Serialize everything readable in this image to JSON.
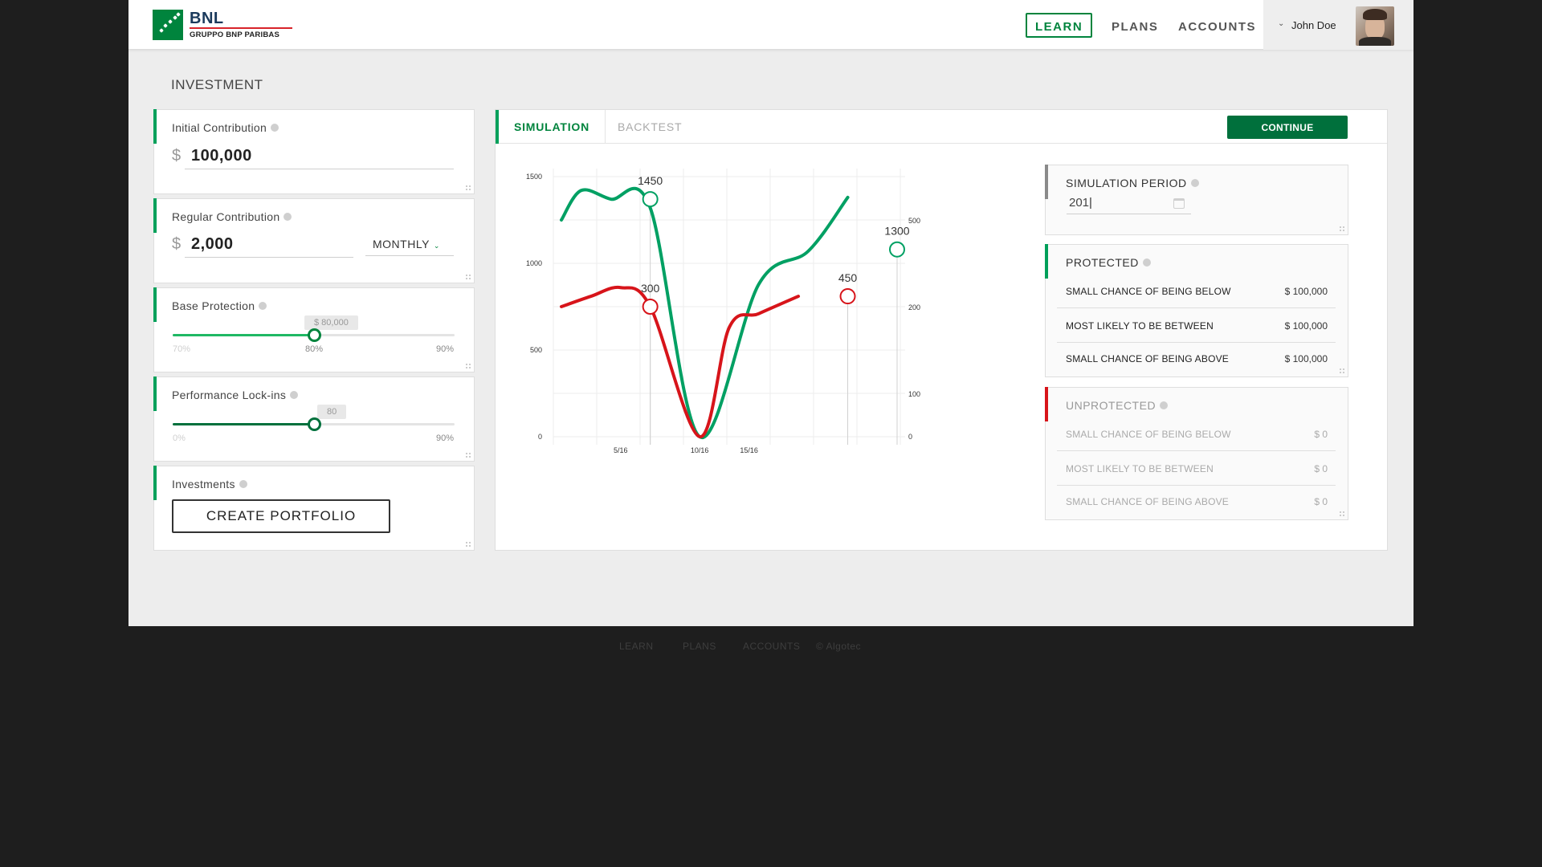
{
  "brand": {
    "name": "BNL",
    "subtitle": "GRUPPO BNP PARIBAS",
    "primary": "#00843d",
    "accent_red": "#d8232a"
  },
  "nav": {
    "learn": "LEARN",
    "plans": "PLANS",
    "accounts": "ACCOUNTS",
    "active": "LEARN"
  },
  "user": {
    "name": "John Doe"
  },
  "page": {
    "title": "INVESTMENT"
  },
  "left": {
    "initial": {
      "title": "Initial Contribution",
      "currency": "$",
      "value": "100,000"
    },
    "regular": {
      "title": "Regular Contribution",
      "currency": "$",
      "value": "2,000",
      "frequency": "MONTHLY"
    },
    "protection": {
      "title": "Base Protection",
      "bubble": "$ 80,000",
      "min": "70%",
      "current": "80%",
      "max": "90%",
      "position": 0.5
    },
    "lockins": {
      "title": "Performance Lock-ins",
      "bubble": "80",
      "min": "0%",
      "max": "90%",
      "position": 0.5
    },
    "investments": {
      "title": "Investments",
      "button": "CREATE PORTFOLIO"
    }
  },
  "tabs": {
    "simulation": "SIMULATION",
    "backtest": "BACKTEST",
    "active": "SIMULATION",
    "continue": "CONTINUE"
  },
  "chart_data": {
    "type": "line",
    "x_ticks": [
      "5/16",
      "10/16",
      "15/16"
    ],
    "left_axis": {
      "ticks": [
        "1500",
        "1000",
        "500",
        "0"
      ],
      "range": [
        0,
        1500
      ]
    },
    "right_axis": {
      "ticks": [
        "500",
        "200",
        "100",
        "0"
      ]
    },
    "grid": true,
    "series": [
      {
        "color": "#00a063",
        "values": [
          [
            1,
            1250
          ],
          [
            3,
            1420
          ],
          [
            6,
            1370
          ],
          [
            10,
            1320
          ],
          [
            15,
            0
          ],
          [
            21,
            880
          ],
          [
            26,
            1070
          ],
          [
            30,
            1380
          ]
        ]
      },
      {
        "color": "#d7141a",
        "values": [
          [
            1,
            750
          ],
          [
            4,
            810
          ],
          [
            7,
            860
          ],
          [
            10,
            750
          ],
          [
            15,
            0
          ],
          [
            18,
            630
          ],
          [
            21,
            710
          ],
          [
            25,
            810
          ]
        ]
      }
    ],
    "markers": [
      {
        "label": "1450",
        "x": 10,
        "y": 1370,
        "color": "#00a063"
      },
      {
        "label": "300",
        "x": 10,
        "y": 750,
        "color": "#d7141a"
      },
      {
        "label": "450",
        "x": 30,
        "y": 810,
        "color": "#d7141a"
      },
      {
        "label": "1300",
        "x": 35,
        "y": 1080,
        "color": "#00a063"
      }
    ]
  },
  "simulation_period": {
    "title": "SIMULATION PERIOD",
    "value": "201"
  },
  "protected": {
    "title": "PROTECTED",
    "rows": [
      {
        "label": "SMALL CHANCE OF BEING BELOW",
        "value": "$ 100,000"
      },
      {
        "label": "MOST LIKELY TO BE BETWEEN",
        "value": "$ 100,000"
      },
      {
        "label": "SMALL CHANCE OF BEING ABOVE",
        "value": "$ 100,000"
      }
    ]
  },
  "unprotected": {
    "title": "UNPROTECTED",
    "rows": [
      {
        "label": "SMALL CHANCE OF BEING BELOW",
        "value": "$ 0"
      },
      {
        "label": "MOST LIKELY TO BE BETWEEN",
        "value": "$ 0"
      },
      {
        "label": "SMALL CHANCE OF BEING ABOVE",
        "value": "$ 0"
      }
    ]
  },
  "footer": {
    "learn": "LEARN",
    "plans": "PLANS",
    "accounts": "ACCOUNTS",
    "copyright": "© Algotec"
  }
}
